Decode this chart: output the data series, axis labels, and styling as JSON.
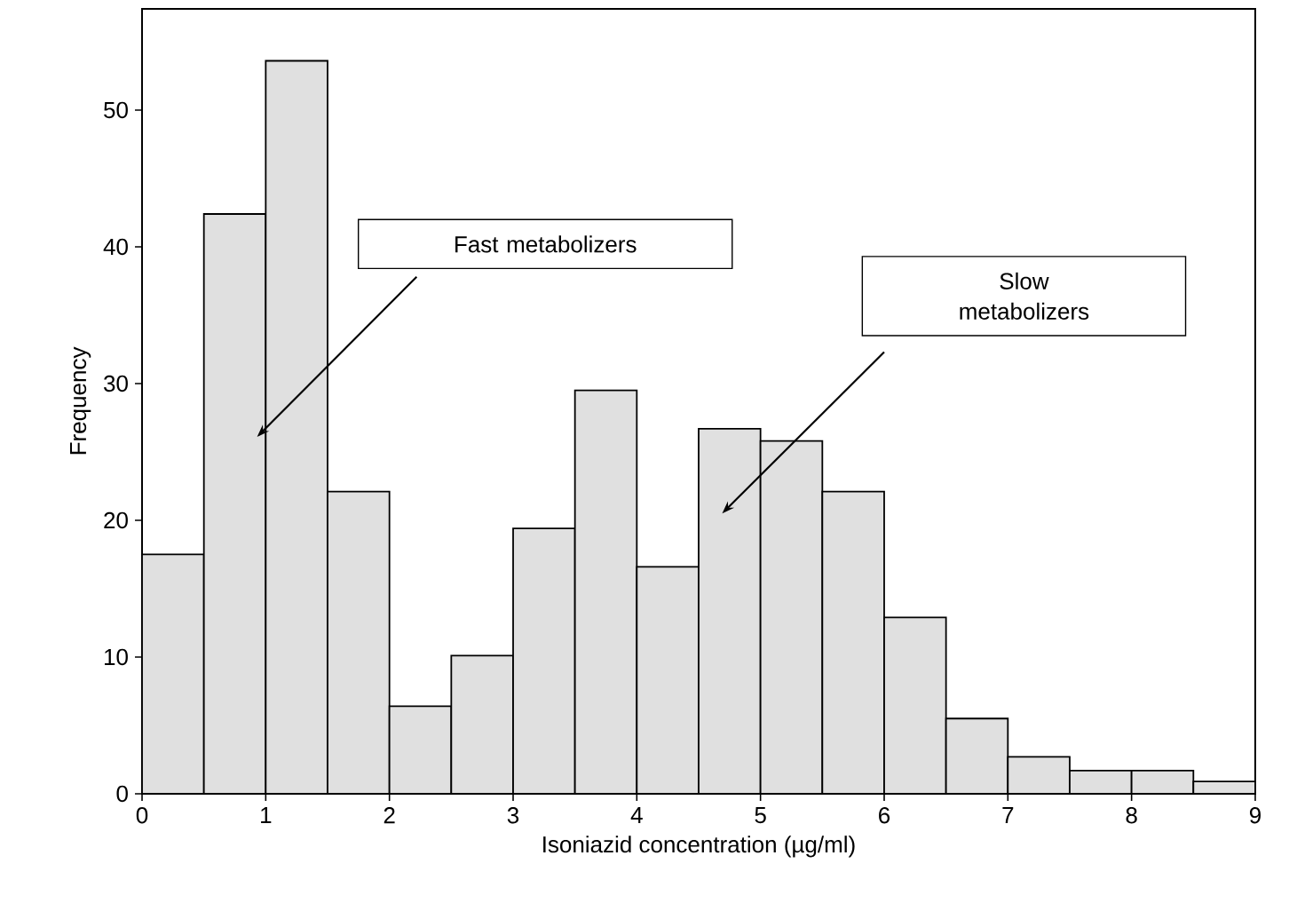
{
  "chart_data": {
    "type": "histogram",
    "xlabel": "Isoniazid concentration (µg/ml)",
    "ylabel": "Frequency",
    "bins": [
      0,
      0.5,
      1,
      1.5,
      2,
      2.5,
      3,
      3.5,
      4,
      4.5,
      5,
      5.5,
      6,
      6.5,
      7,
      7.5,
      8,
      8.5,
      9
    ],
    "values": [
      17.5,
      42.4,
      53.6,
      22.1,
      6.4,
      10.1,
      19.4,
      29.5,
      16.6,
      26.7,
      25.8,
      22.1,
      12.9,
      5.5,
      2.7,
      1.7,
      1.7,
      0.9
    ],
    "color": "#e0e0e0",
    "xlim": [
      0,
      9
    ],
    "xticks": [
      0,
      1,
      2,
      3,
      4,
      5,
      6,
      7,
      8,
      9
    ],
    "ylim": [
      0,
      57.4
    ],
    "yticks": [
      0,
      10,
      20,
      30,
      40,
      50
    ],
    "annotations": [
      "Fast metabolizers",
      "Slow metabolizers"
    ]
  }
}
